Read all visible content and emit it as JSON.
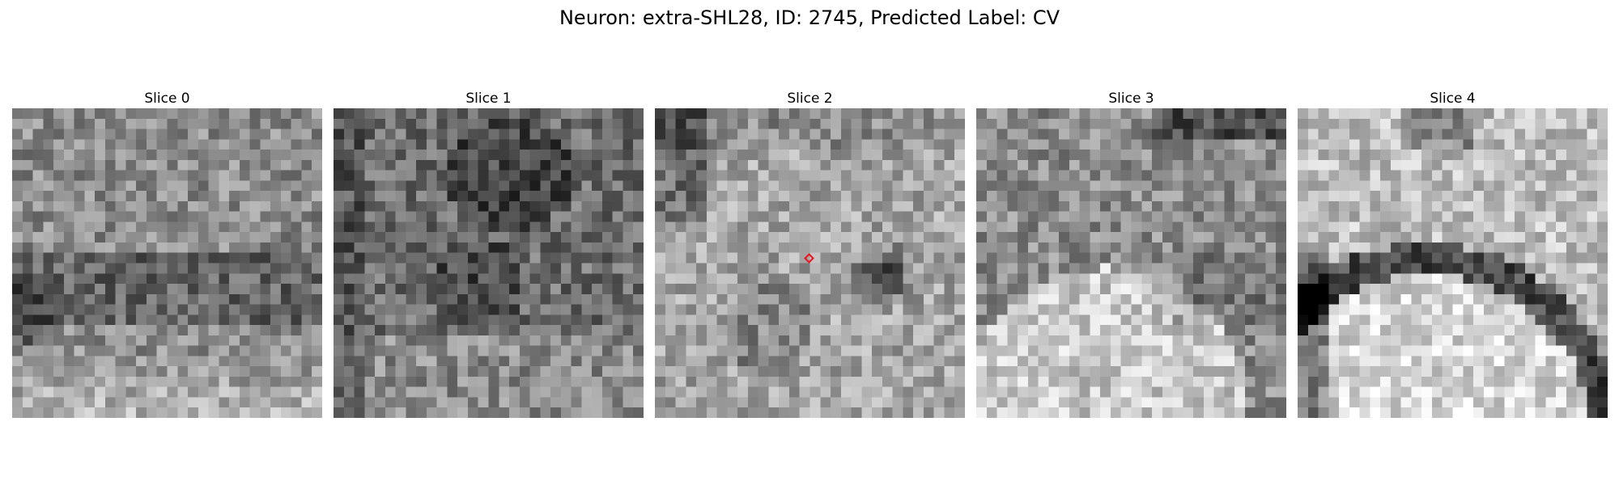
{
  "figure": {
    "title": "Neuron: extra-SHL28, ID: 2745, Predicted Label: CV"
  },
  "slices": [
    {
      "label": "Slice 0",
      "pattern": "noisy-dark-band",
      "seed": 11
    },
    {
      "label": "Slice 1",
      "pattern": "dark-blobs",
      "seed": 23
    },
    {
      "label": "Slice 2",
      "pattern": "bright-center-dark-blob",
      "seed": 37
    },
    {
      "label": "Slice 3",
      "pattern": "bright-lower-cell",
      "seed": 41
    },
    {
      "label": "Slice 4",
      "pattern": "bright-arc-cell",
      "seed": 59
    }
  ],
  "marker": {
    "slice_index": 2,
    "color": "#e8141c",
    "shape": "diamond-marker-icon"
  },
  "grid_size": 30
}
